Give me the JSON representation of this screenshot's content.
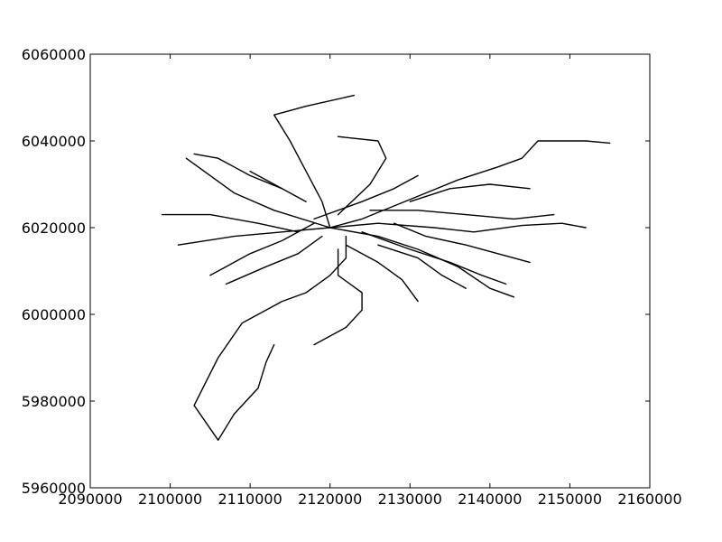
{
  "map": {
    "type": "line-network",
    "x_range": [
      2090000,
      2160000
    ],
    "y_range": [
      5960000,
      6060000
    ],
    "x_ticks": [
      "2090000",
      "2100000",
      "2110000",
      "2120000",
      "2130000",
      "2140000",
      "2150000",
      "2160000"
    ],
    "y_ticks": [
      "5960000",
      "5980000",
      "6000000",
      "6020000",
      "6040000",
      "6060000"
    ],
    "grid": false,
    "line_color": "#000000",
    "routes": [
      [
        [
          2120000,
          6020000
        ],
        [
          2124000,
          6022000
        ],
        [
          2128000,
          6025000
        ],
        [
          2132000,
          6028000
        ],
        [
          2136000,
          6031000
        ],
        [
          2141000,
          6034000
        ],
        [
          2144000,
          6036000
        ],
        [
          2146000,
          6040000
        ],
        [
          2152000,
          6040000
        ],
        [
          2155000,
          6039500
        ]
      ],
      [
        [
          2120000,
          6020000
        ],
        [
          2126000,
          6021000
        ],
        [
          2133000,
          6020000
        ],
        [
          2138000,
          6019000
        ],
        [
          2144000,
          6020500
        ],
        [
          2149000,
          6021000
        ],
        [
          2152000,
          6020000
        ]
      ],
      [
        [
          2120000,
          6020000
        ],
        [
          2126000,
          6018000
        ],
        [
          2131000,
          6015000
        ],
        [
          2136000,
          6011000
        ],
        [
          2140000,
          6006000
        ],
        [
          2143000,
          6004000
        ]
      ],
      [
        [
          2120000,
          6020000
        ],
        [
          2114000,
          6019000
        ],
        [
          2108000,
          6018000
        ],
        [
          2101000,
          6016000
        ]
      ],
      [
        [
          2120000,
          6020000
        ],
        [
          2113000,
          6024000
        ],
        [
          2108000,
          6028000
        ],
        [
          2102000,
          6036000
        ]
      ],
      [
        [
          2120000,
          6020000
        ],
        [
          2119000,
          6026000
        ],
        [
          2117000,
          6033000
        ],
        [
          2115000,
          6040000
        ],
        [
          2113000,
          6046000
        ],
        [
          2117000,
          6048000
        ],
        [
          2123000,
          6050500
        ]
      ],
      [
        [
          2122000,
          6018000
        ],
        [
          2122000,
          6013000
        ],
        [
          2120000,
          6009000
        ],
        [
          2117000,
          6005000
        ],
        [
          2114000,
          6003000
        ],
        [
          2109000,
          5998000
        ],
        [
          2106000,
          5990000
        ],
        [
          2103000,
          5979000
        ],
        [
          2106000,
          5971000
        ],
        [
          2108000,
          5977000
        ],
        [
          2111000,
          5983000
        ],
        [
          2112000,
          5989000
        ],
        [
          2113000,
          5993000
        ]
      ],
      [
        [
          2121000,
          6015000
        ],
        [
          2121000,
          6009000
        ],
        [
          2124000,
          6005000
        ],
        [
          2124000,
          6001000
        ],
        [
          2122000,
          5997000
        ],
        [
          2118000,
          5993000
        ]
      ],
      [
        [
          2122000,
          6016000
        ],
        [
          2126000,
          6012000
        ],
        [
          2129000,
          6008000
        ],
        [
          2131000,
          6003000
        ]
      ],
      [
        [
          2124000,
          6019000
        ],
        [
          2130000,
          6015000
        ],
        [
          2135000,
          6012000
        ],
        [
          2139000,
          6009000
        ],
        [
          2142000,
          6007000
        ]
      ],
      [
        [
          2118000,
          6022000
        ],
        [
          2124000,
          6026000
        ],
        [
          2128000,
          6029000
        ],
        [
          2131000,
          6032000
        ]
      ],
      [
        [
          2118000,
          6021000
        ],
        [
          2114000,
          6017000
        ],
        [
          2110000,
          6014000
        ],
        [
          2105000,
          6009000
        ]
      ],
      [
        [
          2121000,
          6023000
        ],
        [
          2125000,
          6030000
        ],
        [
          2127000,
          6036000
        ],
        [
          2126000,
          6040000
        ],
        [
          2121000,
          6041000
        ]
      ],
      [
        [
          2119000,
          6018000
        ],
        [
          2116000,
          6014000
        ],
        [
          2112000,
          6011000
        ],
        [
          2107000,
          6007000
        ]
      ],
      [
        [
          2125000,
          6024000
        ],
        [
          2131000,
          6024000
        ],
        [
          2137000,
          6023000
        ],
        [
          2143000,
          6022000
        ],
        [
          2148000,
          6023000
        ]
      ],
      [
        [
          2116000,
          6019000
        ],
        [
          2111000,
          6021000
        ],
        [
          2105000,
          6023000
        ],
        [
          2099000,
          6023000
        ]
      ],
      [
        [
          2114000,
          6029000
        ],
        [
          2110000,
          6032000
        ],
        [
          2106000,
          6036000
        ],
        [
          2103000,
          6037000
        ]
      ],
      [
        [
          2126000,
          6016000
        ],
        [
          2131000,
          6013000
        ],
        [
          2134000,
          6009000
        ],
        [
          2137000,
          6006000
        ]
      ],
      [
        [
          2130000,
          6026000
        ],
        [
          2135000,
          6029000
        ],
        [
          2140000,
          6030000
        ],
        [
          2145000,
          6029000
        ]
      ],
      [
        [
          2117000,
          6026000
        ],
        [
          2113000,
          6030000
        ],
        [
          2110000,
          6033000
        ]
      ],
      [
        [
          2128000,
          6021000
        ],
        [
          2132000,
          6018000
        ],
        [
          2137000,
          6016000
        ],
        [
          2141000,
          6014000
        ],
        [
          2145000,
          6012000
        ]
      ]
    ]
  }
}
